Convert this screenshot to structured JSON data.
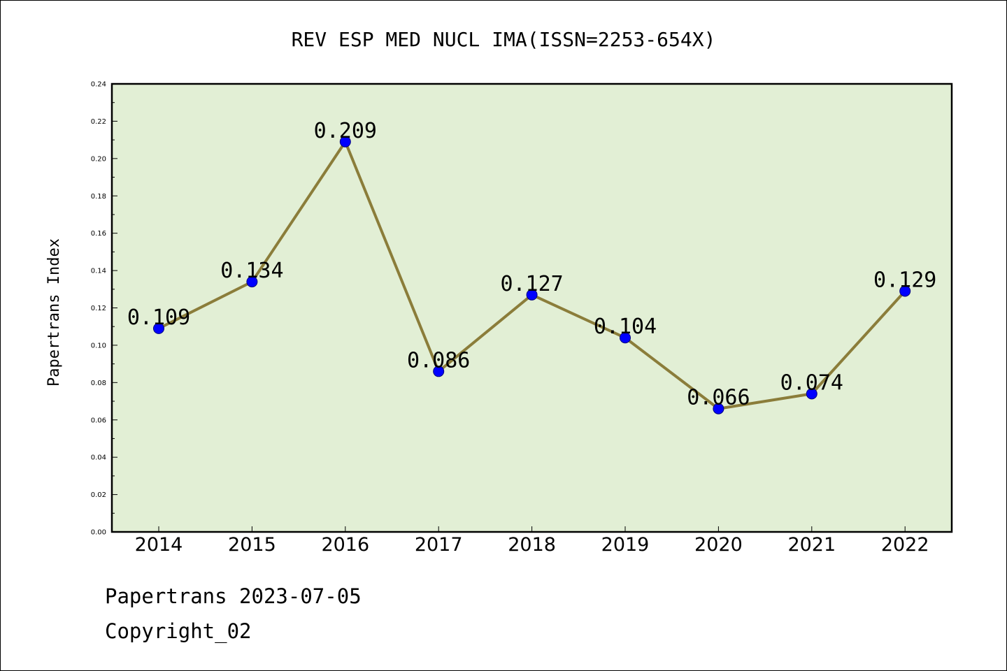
{
  "colors": {
    "plot_background": "#e2efd5",
    "line": "#8b7d3a",
    "marker": "#0000ff",
    "marker_edge": "#000080",
    "axis": "#000000"
  },
  "footer": {
    "date_text": "Papertrans 2023-07-05",
    "copyright_text": "Copyright_02"
  },
  "chart_data": {
    "type": "line",
    "title": "REV ESP MED NUCL IMA(ISSN=2253-654X)",
    "xlabel": "",
    "ylabel": "Papertrans Index",
    "categories": [
      "2014",
      "2015",
      "2016",
      "2017",
      "2018",
      "2019",
      "2020",
      "2021",
      "2022"
    ],
    "series": [
      {
        "values": [
          0.109,
          0.134,
          0.209,
          0.086,
          0.127,
          0.104,
          0.066,
          0.074,
          0.129
        ],
        "labels": [
          "0.109",
          "0.134",
          "0.209",
          "0.086",
          "0.127",
          "0.104",
          "0.066",
          "0.074",
          "0.129"
        ]
      }
    ],
    "ylim": [
      0,
      0.24
    ],
    "yticks": [
      "0.00",
      "0.02",
      "0.04",
      "0.06",
      "0.08",
      "0.10",
      "0.12",
      "0.14",
      "0.16",
      "0.18",
      "0.20",
      "0.22",
      "0.24"
    ],
    "grid": false,
    "legend": "none"
  }
}
